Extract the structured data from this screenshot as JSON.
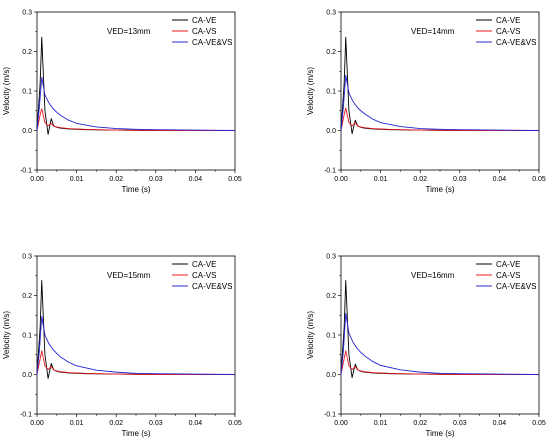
{
  "chart_data": [
    {
      "type": "line",
      "annotation": "VED=13mm",
      "xlabel": "Time (s)",
      "ylabel": "Velocity (m/s)",
      "xlim": [
        0.0,
        0.05
      ],
      "ylim": [
        -0.1,
        0.3
      ],
      "xticks": [
        "0.00",
        "0.01",
        "0.02",
        "0.03",
        "0.04",
        "0.05"
      ],
      "yticks": [
        "-0.1",
        "0.0",
        "0.1",
        "0.2",
        "0.3"
      ],
      "legend_position": "top-right",
      "series": [
        {
          "name": "CA-VE",
          "color": "#000000",
          "x": [
            0,
            0.0008,
            0.0012,
            0.002,
            0.0028,
            0.0036,
            0.0042,
            0.005,
            0.006,
            0.008,
            0.012,
            0.02,
            0.03,
            0.05
          ],
          "y": [
            0.0,
            0.12,
            0.236,
            0.05,
            -0.01,
            0.03,
            0.012,
            0.008,
            0.006,
            0.004,
            0.002,
            0.001,
            0.0,
            0.0
          ]
        },
        {
          "name": "CA-VS",
          "color": "#e8191e",
          "x": [
            0,
            0.0008,
            0.0012,
            0.002,
            0.0028,
            0.0036,
            0.0042,
            0.005,
            0.006,
            0.008,
            0.012,
            0.02,
            0.03,
            0.05
          ],
          "y": [
            0.0,
            0.04,
            0.055,
            0.02,
            0.012,
            0.018,
            0.011,
            0.009,
            0.007,
            0.005,
            0.003,
            0.001,
            0.0,
            0.0
          ]
        },
        {
          "name": "CA-VE&VS",
          "color": "#2424d4",
          "x": [
            0,
            0.0006,
            0.0012,
            0.002,
            0.003,
            0.004,
            0.005,
            0.006,
            0.008,
            0.01,
            0.015,
            0.02,
            0.025,
            0.03,
            0.04,
            0.05
          ],
          "y": [
            0.0,
            0.06,
            0.135,
            0.09,
            0.07,
            0.056,
            0.046,
            0.038,
            0.026,
            0.018,
            0.009,
            0.005,
            0.003,
            0.002,
            0.001,
            0.0
          ]
        }
      ]
    },
    {
      "type": "line",
      "annotation": "VED=14mm",
      "xlabel": "Time (s)",
      "ylabel": "Velocity (m/s)",
      "xlim": [
        0.0,
        0.05
      ],
      "ylim": [
        -0.1,
        0.3
      ],
      "xticks": [
        "0.00",
        "0.01",
        "0.02",
        "0.03",
        "0.04",
        "0.05"
      ],
      "yticks": [
        "-0.1",
        "0.0",
        "0.1",
        "0.2",
        "0.3"
      ],
      "legend_position": "top-right",
      "series": [
        {
          "name": "CA-VE",
          "color": "#000000",
          "x": [
            0,
            0.0008,
            0.0012,
            0.002,
            0.0028,
            0.0036,
            0.0042,
            0.005,
            0.006,
            0.008,
            0.012,
            0.02,
            0.03,
            0.05
          ],
          "y": [
            0.0,
            0.12,
            0.236,
            0.05,
            -0.008,
            0.026,
            0.012,
            0.008,
            0.006,
            0.004,
            0.002,
            0.001,
            0.0,
            0.0
          ]
        },
        {
          "name": "CA-VS",
          "color": "#e8191e",
          "x": [
            0,
            0.0008,
            0.0012,
            0.002,
            0.0028,
            0.0036,
            0.0042,
            0.005,
            0.006,
            0.008,
            0.012,
            0.02,
            0.03,
            0.05
          ],
          "y": [
            0.0,
            0.04,
            0.057,
            0.02,
            0.012,
            0.02,
            0.011,
            0.009,
            0.007,
            0.005,
            0.003,
            0.001,
            0.0,
            0.0
          ]
        },
        {
          "name": "CA-VE&VS",
          "color": "#2424d4",
          "x": [
            0,
            0.0006,
            0.0012,
            0.002,
            0.003,
            0.004,
            0.005,
            0.006,
            0.008,
            0.01,
            0.015,
            0.02,
            0.025,
            0.03,
            0.04,
            0.05
          ],
          "y": [
            0.0,
            0.06,
            0.14,
            0.095,
            0.074,
            0.06,
            0.05,
            0.042,
            0.029,
            0.02,
            0.01,
            0.005,
            0.003,
            0.002,
            0.001,
            0.0
          ]
        }
      ]
    },
    {
      "type": "line",
      "annotation": "VED=15mm",
      "xlabel": "Time (s)",
      "ylabel": "Velocity (m/s)",
      "xlim": [
        0.0,
        0.05
      ],
      "ylim": [
        -0.1,
        0.3
      ],
      "xticks": [
        "0.00",
        "0.01",
        "0.02",
        "0.03",
        "0.04",
        "0.05"
      ],
      "yticks": [
        "-0.1",
        "0.0",
        "0.1",
        "0.2",
        "0.3"
      ],
      "legend_position": "top-right",
      "series": [
        {
          "name": "CA-VE",
          "color": "#000000",
          "x": [
            0,
            0.0008,
            0.0012,
            0.002,
            0.0028,
            0.0036,
            0.0042,
            0.005,
            0.006,
            0.008,
            0.012,
            0.02,
            0.03,
            0.05
          ],
          "y": [
            0.0,
            0.12,
            0.238,
            0.05,
            -0.01,
            0.028,
            0.012,
            0.008,
            0.006,
            0.004,
            0.002,
            0.001,
            0.0,
            0.0
          ]
        },
        {
          "name": "CA-VS",
          "color": "#e8191e",
          "x": [
            0,
            0.0008,
            0.0012,
            0.002,
            0.0028,
            0.0036,
            0.0042,
            0.005,
            0.006,
            0.008,
            0.012,
            0.02,
            0.03,
            0.05
          ],
          "y": [
            0.0,
            0.04,
            0.06,
            0.022,
            0.013,
            0.02,
            0.012,
            0.009,
            0.007,
            0.005,
            0.003,
            0.001,
            0.0,
            0.0
          ]
        },
        {
          "name": "CA-VE&VS",
          "color": "#2424d4",
          "x": [
            0,
            0.0006,
            0.0012,
            0.002,
            0.003,
            0.004,
            0.005,
            0.006,
            0.008,
            0.01,
            0.015,
            0.02,
            0.025,
            0.03,
            0.04,
            0.05
          ],
          "y": [
            0.0,
            0.06,
            0.147,
            0.1,
            0.078,
            0.064,
            0.053,
            0.044,
            0.031,
            0.022,
            0.011,
            0.006,
            0.003,
            0.002,
            0.001,
            0.0
          ]
        }
      ]
    },
    {
      "type": "line",
      "annotation": "VED=16mm",
      "xlabel": "Time (s)",
      "ylabel": "Velocity (m/s)",
      "xlim": [
        0.0,
        0.05
      ],
      "ylim": [
        -0.1,
        0.3
      ],
      "xticks": [
        "0.00",
        "0.01",
        "0.02",
        "0.03",
        "0.04",
        "0.05"
      ],
      "yticks": [
        "-0.1",
        "0.0",
        "0.1",
        "0.2",
        "0.3"
      ],
      "legend_position": "top-right",
      "series": [
        {
          "name": "CA-VE",
          "color": "#000000",
          "x": [
            0,
            0.0008,
            0.0012,
            0.002,
            0.0028,
            0.0036,
            0.0042,
            0.005,
            0.006,
            0.008,
            0.012,
            0.02,
            0.03,
            0.05
          ],
          "y": [
            0.0,
            0.12,
            0.238,
            0.05,
            -0.008,
            0.026,
            0.012,
            0.008,
            0.006,
            0.004,
            0.002,
            0.001,
            0.0,
            0.0
          ]
        },
        {
          "name": "CA-VS",
          "color": "#e8191e",
          "x": [
            0,
            0.0008,
            0.0012,
            0.002,
            0.0028,
            0.0036,
            0.0042,
            0.005,
            0.006,
            0.008,
            0.012,
            0.02,
            0.03,
            0.05
          ],
          "y": [
            0.0,
            0.04,
            0.06,
            0.022,
            0.013,
            0.02,
            0.012,
            0.009,
            0.007,
            0.005,
            0.003,
            0.001,
            0.0,
            0.0
          ]
        },
        {
          "name": "CA-VE&VS",
          "color": "#2424d4",
          "x": [
            0,
            0.0006,
            0.0012,
            0.002,
            0.003,
            0.004,
            0.005,
            0.006,
            0.008,
            0.01,
            0.015,
            0.02,
            0.025,
            0.03,
            0.04,
            0.05
          ],
          "y": [
            0.0,
            0.06,
            0.155,
            0.105,
            0.082,
            0.067,
            0.056,
            0.047,
            0.033,
            0.023,
            0.012,
            0.006,
            0.003,
            0.002,
            0.001,
            0.0
          ]
        }
      ]
    }
  ]
}
